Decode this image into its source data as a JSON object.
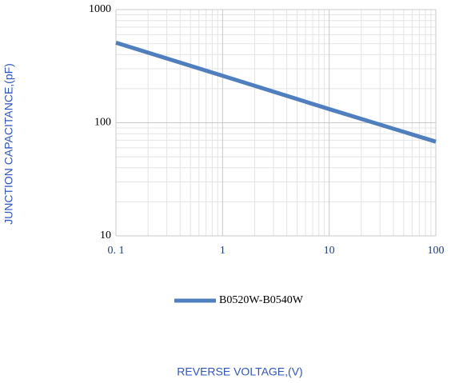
{
  "chart_data": {
    "type": "line",
    "x_label": "REVERSE VOLTAGE,(V)",
    "y_label": "JUNCTION CAPACITANCE,(pF)",
    "x": [
      0.1,
      1,
      10,
      100
    ],
    "series": [
      {
        "name": "B0520W-B0540W",
        "color": "#4f7fbf",
        "values": [
          510,
          260,
          132,
          68
        ]
      }
    ],
    "xlim": [
      0.1,
      100
    ],
    "ylim": [
      10,
      1000
    ],
    "xticks": [
      {
        "value": 0.1,
        "label": "0. 1"
      },
      1,
      10,
      100
    ],
    "yticks": [
      10,
      100,
      1000
    ],
    "x_log": true,
    "y_log": true,
    "grid": true,
    "minor_grid": true,
    "legend": "bottom",
    "axis_label_color": "#2e55c4",
    "x_tick_color": "#1f3c88"
  }
}
